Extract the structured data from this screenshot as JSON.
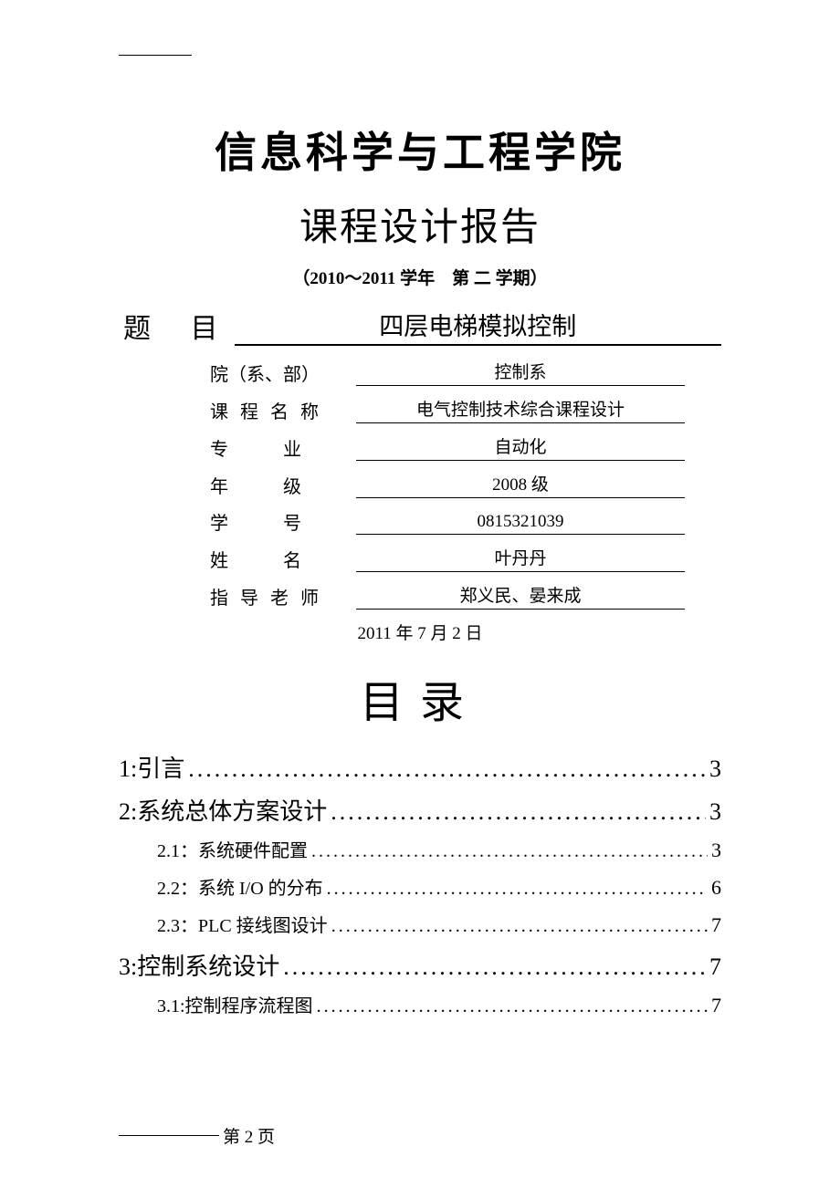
{
  "header": {
    "school_name": "信息科学与工程学院",
    "report_title": "课程设计报告",
    "semester": "（2010～2011 学年　第 二 学期）"
  },
  "project": {
    "label": "题 目",
    "value": "四层电梯模拟控制"
  },
  "info": [
    {
      "label": "院（系、部）",
      "value": "控制系",
      "spacing": "0px"
    },
    {
      "label": "课 程 名 称",
      "value": "电气控制技术综合课程设计",
      "spacing": "4px"
    },
    {
      "label": "专　　　业",
      "value": "自动化",
      "spacing": "0px"
    },
    {
      "label": "年　　　级",
      "value": "2008 级",
      "spacing": "0px"
    },
    {
      "label": "学　　　号",
      "value": "0815321039",
      "spacing": "0px"
    },
    {
      "label": "姓　　　名",
      "value": "叶丹丹",
      "spacing": "0px"
    },
    {
      "label": "指 导 老 师",
      "value": "郑义民、晏来成",
      "spacing": "4px"
    }
  ],
  "date": "2011 年 7 月 2 日",
  "toc": {
    "title": "目录",
    "items": [
      {
        "type": "main",
        "text": "1:引言",
        "page": "3"
      },
      {
        "type": "main",
        "text": "2:系统总体方案设计",
        "page": "3"
      },
      {
        "type": "sub",
        "text": "2.1：系统硬件配置",
        "page": "3"
      },
      {
        "type": "sub",
        "text": "2.2：系统 I/O 的分布",
        "page": "6"
      },
      {
        "type": "sub",
        "text": "2.3：PLC 接线图设计",
        "page": "7"
      },
      {
        "type": "main",
        "text": "3:控制系统设计",
        "page": "7"
      },
      {
        "type": "sub",
        "text": "3.1:控制程序流程图",
        "page": "7"
      }
    ]
  },
  "footer": {
    "page_text": "第 2 页"
  }
}
